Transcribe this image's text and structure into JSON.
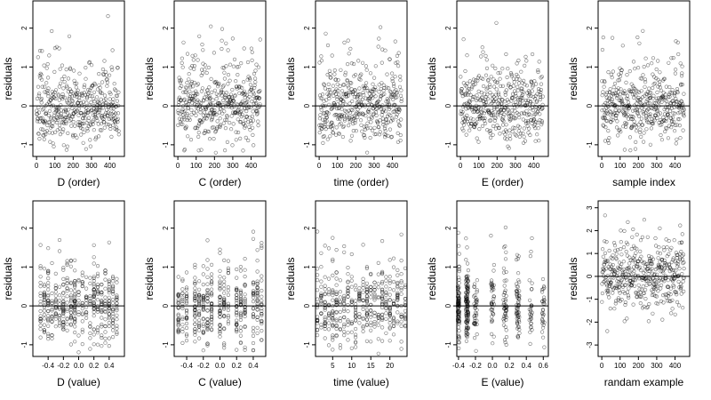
{
  "chart_data": [
    {
      "type": "scatter",
      "xlabel": "D (order)",
      "ylabel": "residuals",
      "xticks": [
        "0",
        "100",
        "200",
        "300",
        "400"
      ],
      "xtick_values": [
        0,
        100,
        200,
        300,
        400
      ],
      "yticks": [
        "-1",
        "0",
        "1",
        "2"
      ],
      "ytick_values": [
        -1,
        0,
        1,
        2
      ],
      "xlim": [
        -20,
        480
      ],
      "ylim": [
        -1.3,
        2.7
      ],
      "hline": 0,
      "x_kind": "order",
      "n": 450,
      "spread": 0.6,
      "seed": 11,
      "grid": false,
      "legend": "none"
    },
    {
      "type": "scatter",
      "xlabel": "C (order)",
      "ylabel": "residuals",
      "xticks": [
        "0",
        "100",
        "200",
        "300",
        "400"
      ],
      "xtick_values": [
        0,
        100,
        200,
        300,
        400
      ],
      "yticks": [
        "-1",
        "0",
        "1",
        "2"
      ],
      "ytick_values": [
        -1,
        0,
        1,
        2
      ],
      "xlim": [
        -20,
        480
      ],
      "ylim": [
        -1.3,
        2.7
      ],
      "hline": 0,
      "x_kind": "order",
      "n": 450,
      "spread": 0.6,
      "seed": 23,
      "grid": false,
      "legend": "none"
    },
    {
      "type": "scatter",
      "xlabel": "time (order)",
      "ylabel": "residuals",
      "xticks": [
        "0",
        "100",
        "200",
        "300",
        "400"
      ],
      "xtick_values": [
        0,
        100,
        200,
        300,
        400
      ],
      "yticks": [
        "-1",
        "0",
        "1",
        "2"
      ],
      "ytick_values": [
        -1,
        0,
        1,
        2
      ],
      "xlim": [
        -20,
        480
      ],
      "ylim": [
        -1.3,
        2.7
      ],
      "hline": 0,
      "x_kind": "order",
      "n": 450,
      "spread": 0.6,
      "seed": 37,
      "grid": false,
      "legend": "none"
    },
    {
      "type": "scatter",
      "xlabel": "E (order)",
      "ylabel": "residuals",
      "xticks": [
        "0",
        "100",
        "200",
        "300",
        "400"
      ],
      "xtick_values": [
        0,
        100,
        200,
        300,
        400
      ],
      "yticks": [
        "-1",
        "0",
        "1",
        "2"
      ],
      "ytick_values": [
        -1,
        0,
        1,
        2
      ],
      "xlim": [
        -20,
        480
      ],
      "ylim": [
        -1.3,
        2.7
      ],
      "hline": 0,
      "x_kind": "order",
      "n": 450,
      "spread": 0.6,
      "seed": 41,
      "grid": false,
      "legend": "none"
    },
    {
      "type": "scatter",
      "xlabel": "sample index",
      "ylabel": "residuals",
      "xticks": [
        "0",
        "100",
        "200",
        "300",
        "400"
      ],
      "xtick_values": [
        0,
        100,
        200,
        300,
        400
      ],
      "yticks": [
        "-1",
        "0",
        "1",
        "2"
      ],
      "ytick_values": [
        -1,
        0,
        1,
        2
      ],
      "xlim": [
        -20,
        480
      ],
      "ylim": [
        -1.3,
        2.7
      ],
      "hline": 0,
      "x_kind": "order",
      "n": 450,
      "spread": 0.6,
      "seed": 53,
      "grid": false,
      "legend": "none"
    },
    {
      "type": "scatter",
      "xlabel": "D (value)",
      "ylabel": "residuals",
      "xticks": [
        "-0.4",
        "-0.2",
        "0.0",
        "0.2",
        "0.4"
      ],
      "xtick_values": [
        -0.4,
        -0.2,
        0.0,
        0.2,
        0.4
      ],
      "yticks": [
        "-1",
        "0",
        "1",
        "2"
      ],
      "ytick_values": [
        -1,
        0,
        1,
        2
      ],
      "xlim": [
        -0.6,
        0.6
      ],
      "ylim": [
        -1.3,
        2.7
      ],
      "hline": 0,
      "x_kind": "columns",
      "columns": [
        -0.5,
        -0.45,
        -0.4,
        -0.35,
        -0.3,
        -0.25,
        -0.2,
        -0.15,
        -0.1,
        -0.05,
        0.0,
        0.05,
        0.1,
        0.15,
        0.2,
        0.25,
        0.3,
        0.35,
        0.4,
        0.45,
        0.5
      ],
      "n": 450,
      "spread": 0.6,
      "seed": 61,
      "grid": false,
      "legend": "none"
    },
    {
      "type": "scatter",
      "xlabel": "C (value)",
      "ylabel": "residuals",
      "xticks": [
        "-0.4",
        "-0.2",
        "0.0",
        "0.2",
        "0.4"
      ],
      "xtick_values": [
        -0.4,
        -0.2,
        0.0,
        0.2,
        0.4
      ],
      "yticks": [
        "-1",
        "0",
        "1",
        "2"
      ],
      "ytick_values": [
        -1,
        0,
        1,
        2
      ],
      "xlim": [
        -0.55,
        0.55
      ],
      "ylim": [
        -1.3,
        2.7
      ],
      "hline": 0,
      "x_kind": "columns",
      "columns": [
        -0.5,
        -0.45,
        -0.4,
        -0.3,
        -0.25,
        -0.2,
        -0.15,
        -0.1,
        0.0,
        0.05,
        0.1,
        0.2,
        0.25,
        0.3,
        0.4,
        0.45,
        0.5
      ],
      "n": 450,
      "spread": 0.6,
      "seed": 73,
      "grid": false,
      "legend": "none"
    },
    {
      "type": "scatter",
      "xlabel": "time (value)",
      "ylabel": "residuals",
      "xticks": [
        "5",
        "10",
        "15",
        "20"
      ],
      "xtick_values": [
        5,
        10,
        15,
        20
      ],
      "yticks": [
        "-1",
        "0",
        "1",
        "2"
      ],
      "ytick_values": [
        -1,
        0,
        1,
        2
      ],
      "xlim": [
        0.5,
        24.5
      ],
      "ylim": [
        -1.3,
        2.7
      ],
      "hline": 0,
      "x_kind": "columns",
      "columns": [
        1,
        2,
        3,
        4,
        5,
        6,
        7,
        8,
        9,
        10,
        11,
        12,
        13,
        14,
        15,
        16,
        17,
        18,
        19,
        20,
        21,
        22,
        23,
        24
      ],
      "n": 450,
      "spread": 0.6,
      "seed": 89,
      "grid": false,
      "legend": "none"
    },
    {
      "type": "scatter",
      "xlabel": "E (value)",
      "ylabel": "residuals",
      "xticks": [
        "-0.4",
        "-0.2",
        "0.0",
        "0.2",
        "0.4",
        "0.6"
      ],
      "xtick_values": [
        -0.4,
        -0.2,
        0.0,
        0.2,
        0.4,
        0.6
      ],
      "yticks": [
        "-1",
        "0",
        "1",
        "2"
      ],
      "ytick_values": [
        -1,
        0,
        1,
        2
      ],
      "xlim": [
        -0.42,
        0.66
      ],
      "ylim": [
        -1.3,
        2.7
      ],
      "hline": 0,
      "x_kind": "clusters",
      "clusters": [
        {
          "x": -0.4,
          "w": 0.02,
          "n": 90
        },
        {
          "x": -0.3,
          "w": 0.03,
          "n": 110
        },
        {
          "x": -0.2,
          "w": 0.04,
          "n": 40
        },
        {
          "x": 0.0,
          "w": 0.04,
          "n": 40
        },
        {
          "x": 0.15,
          "w": 0.04,
          "n": 50
        },
        {
          "x": 0.3,
          "w": 0.04,
          "n": 60
        },
        {
          "x": 0.45,
          "w": 0.04,
          "n": 30
        },
        {
          "x": 0.6,
          "w": 0.03,
          "n": 30
        }
      ],
      "spread": 0.6,
      "seed": 97,
      "grid": false,
      "legend": "none"
    },
    {
      "type": "scatter",
      "xlabel": "randam example",
      "ylabel": "residuals",
      "xticks": [
        "0",
        "100",
        "200",
        "300",
        "400"
      ],
      "xtick_values": [
        0,
        100,
        200,
        300,
        400
      ],
      "yticks": [
        "-3",
        "-2",
        "-1",
        "0",
        "1",
        "2",
        "3"
      ],
      "ytick_values": [
        -3,
        -2,
        -1,
        0,
        1,
        2,
        3
      ],
      "xlim": [
        -20,
        480
      ],
      "ylim": [
        -3.5,
        3.3
      ],
      "hline": 0,
      "x_kind": "order",
      "n": 450,
      "spread": 1.0,
      "seed": 101,
      "grid": false,
      "legend": "none"
    }
  ]
}
